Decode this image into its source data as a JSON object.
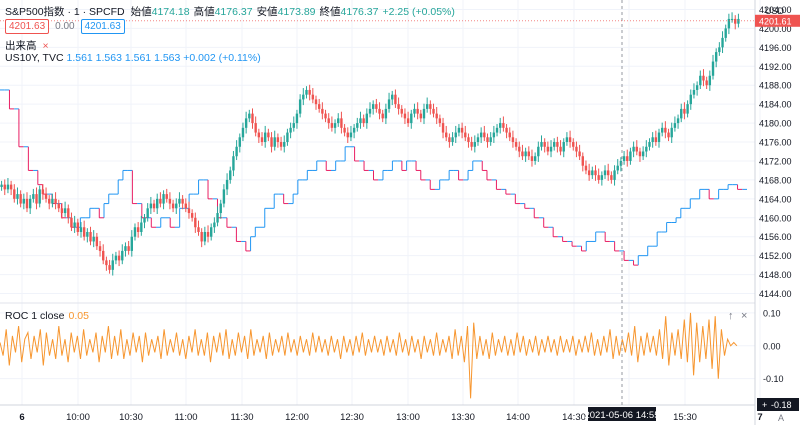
{
  "header": {
    "symbol": "S&P500指数 · 1 · SPCFD",
    "ohlc": [
      {
        "label": "始値",
        "value": "4174.18"
      },
      {
        "label": "高値",
        "value": "4176.37"
      },
      {
        "label": "安値",
        "value": "4173.89"
      },
      {
        "label": "終値",
        "value": "4176.37"
      },
      {
        "label": "",
        "value": "+2.25 (+0.05%)"
      }
    ],
    "bid": "4201.63",
    "spread": "0.00",
    "ask": "4201.63",
    "volume_label": "出来高",
    "us10y_label": "US10Y, TVC",
    "us10y_values": "1.561  1.563  1.561  1.563  +0.002 (+0.11%)",
    "roc_label": "ROC 1 close",
    "roc_value": "0.05",
    "pane_up": "↑",
    "pane_close": "×",
    "axis_button_a": "A"
  },
  "colors": {
    "up": "#26a69a",
    "down": "#ef5350",
    "us10y_up": "#2196f3",
    "us10y_down": "#e91e63",
    "roc": "#f7962f",
    "grid": "#f0f3fa",
    "axis_text": "#131722",
    "crosshair": "#9598a1"
  },
  "crosshair": {
    "time_label": "2021-05-06  14:55",
    "roc_value": "-0.18",
    "roc_plus": "+"
  },
  "chart_data": {
    "type": "candlestick",
    "x_ticks": [
      "6",
      "10:00",
      "10:30",
      "11:00",
      "11:30",
      "12:00",
      "12:30",
      "13:00",
      "13:30",
      "14:00",
      "14:30",
      "15:00",
      "15:30",
      "7"
    ],
    "price_axis": {
      "unit": "USD",
      "ylim": [
        4142,
        4206
      ],
      "ticks": [
        "4144.00",
        "4148.00",
        "4152.00",
        "4156.00",
        "4160.00",
        "4164.00",
        "4168.00",
        "4172.00",
        "4176.00",
        "4180.00",
        "4184.00",
        "4188.00",
        "4192.00",
        "4196.00",
        "4200.00",
        "4204.00"
      ],
      "last_price": "4201.61"
    },
    "roc_axis": {
      "ylim": [
        -0.18,
        0.13
      ],
      "ticks": [
        "0.10",
        "0.00",
        "-0.10"
      ]
    },
    "spx_close": [
      4167,
      4166,
      4167,
      4166,
      4164,
      4165,
      4163,
      4164,
      4162,
      4164,
      4165,
      4163,
      4166,
      4165,
      4164,
      4163,
      4164,
      4163,
      4162,
      4161,
      4162,
      4160,
      4158,
      4159,
      4157,
      4158,
      4156,
      4157,
      4155,
      4156,
      4154,
      4153,
      4151,
      4150,
      4149,
      4151,
      4152,
      4151,
      4153,
      4154,
      4153,
      4156,
      4158,
      4157,
      4159,
      4160,
      4162,
      4163,
      4162,
      4164,
      4163,
      4165,
      4164,
      4163,
      4162,
      4163,
      4164,
      4163,
      4162,
      4161,
      4160,
      4158,
      4157,
      4155,
      4157,
      4156,
      4158,
      4159,
      4161,
      4163,
      4166,
      4168,
      4170,
      4173,
      4175,
      4177,
      4179,
      4181,
      4182,
      4180,
      4178,
      4177,
      4176,
      4178,
      4177,
      4175,
      4177,
      4176,
      4175,
      4176,
      4178,
      4179,
      4180,
      4182,
      4185,
      4186,
      4187,
      4186,
      4185,
      4184,
      4183,
      4182,
      4181,
      4180,
      4179,
      4180,
      4181,
      4179,
      4178,
      4177,
      4178,
      4179,
      4180,
      4181,
      4180,
      4182,
      4183,
      4184,
      4183,
      4182,
      4181,
      4183,
      4185,
      4186,
      4184,
      4183,
      4182,
      4181,
      4180,
      4182,
      4183,
      4182,
      4181,
      4183,
      4184,
      4183,
      4182,
      4181,
      4180,
      4178,
      4177,
      4176,
      4177,
      4178,
      4179,
      4178,
      4177,
      4176,
      4175,
      4176,
      4177,
      4178,
      4177,
      4176,
      4177,
      4178,
      4179,
      4180,
      4179,
      4178,
      4177,
      4176,
      4175,
      4174,
      4173,
      4174,
      4173,
      4172,
      4173,
      4175,
      4176,
      4175,
      4174,
      4175,
      4176,
      4175,
      4174,
      4176,
      4177,
      4176,
      4175,
      4174,
      4173,
      4171,
      4170,
      4169,
      4170,
      4169,
      4168,
      4169,
      4170,
      4169,
      4168,
      4170,
      4171,
      4172,
      4173,
      4172,
      4174,
      4175,
      4174,
      4173,
      4174,
      4175,
      4176,
      4177,
      4176,
      4178,
      4179,
      4178,
      4177,
      4179,
      4180,
      4181,
      4183,
      4182,
      4184,
      4186,
      4187,
      4188,
      4190,
      4189,
      4188,
      4190,
      4193,
      4195,
      4196,
      4198,
      4200,
      4202,
      4202,
      4201,
      4202
    ],
    "us10y_steps": [
      4187,
      4187,
      4183,
      4183,
      4175,
      4175,
      4170,
      4170,
      4167,
      4165,
      4165,
      4163,
      4163,
      4160,
      4160,
      4158,
      4158,
      4160,
      4160,
      4162,
      4162,
      4160,
      4163,
      4165,
      4165,
      4168,
      4170,
      4170,
      4163,
      4163,
      4160,
      4160,
      4158,
      4158,
      4160,
      4160,
      4158,
      4158,
      4162,
      4162,
      4165,
      4165,
      4168,
      4168,
      4164,
      4164,
      4160,
      4160,
      4158,
      4158,
      4155,
      4155,
      4153,
      4156,
      4158,
      4158,
      4162,
      4162,
      4165,
      4165,
      4163,
      4163,
      4165,
      4168,
      4168,
      4170,
      4170,
      4172,
      4172,
      4170,
      4170,
      4172,
      4172,
      4175,
      4175,
      4172,
      4172,
      4170,
      4170,
      4168,
      4168,
      4170,
      4170,
      4172,
      4172,
      4170,
      4172,
      4172,
      4170,
      4168,
      4168,
      4166,
      4166,
      4168,
      4168,
      4170,
      4170,
      4168,
      4168,
      4170,
      4172,
      4172,
      4170,
      4168,
      4168,
      4166,
      4166,
      4165,
      4165,
      4163,
      4163,
      4162,
      4162,
      4160,
      4160,
      4158,
      4158,
      4156,
      4156,
      4155,
      4155,
      4154,
      4154,
      4153,
      4155,
      4155,
      4157,
      4157,
      4155,
      4155,
      4153,
      4153,
      4151,
      4151,
      4150,
      4152,
      4152,
      4154,
      4154,
      4157,
      4157,
      4159,
      4159,
      4160,
      4162,
      4162,
      4164,
      4164,
      4166,
      4166,
      4164,
      4164,
      4166,
      4166,
      4167,
      4167,
      4166,
      4166
    ],
    "roc_values": [
      0.01,
      -0.03,
      0.05,
      -0.06,
      0.03,
      -0.02,
      0.06,
      -0.05,
      0.02,
      0.04,
      -0.04,
      0.03,
      -0.02,
      0.05,
      -0.06,
      0.04,
      -0.03,
      0.02,
      -0.04,
      0.06,
      -0.03,
      0.02,
      -0.05,
      0.04,
      -0.02,
      0.03,
      -0.04,
      0.05,
      -0.03,
      0.02,
      -0.02,
      0.04,
      -0.05,
      0.03,
      -0.02,
      0.06,
      -0.04,
      0.03,
      -0.03,
      0.05,
      -0.04,
      0.02,
      -0.03,
      0.04,
      -0.02,
      0.03,
      -0.05,
      0.04,
      -0.03,
      0.02,
      -0.02,
      0.03,
      -0.04,
      0.05,
      -0.03,
      0.02,
      -0.02,
      0.04,
      -0.03,
      0.02,
      -0.04,
      0.03,
      -0.02,
      0.05,
      -0.03,
      0.02,
      -0.03,
      0.04,
      -0.05,
      0.03,
      -0.02,
      0.04,
      -0.03,
      0.05,
      -0.04,
      0.02,
      -0.03,
      0.04,
      -0.02,
      0.03,
      -0.04,
      0.05,
      -0.03,
      0.02,
      -0.02,
      0.03,
      -0.04,
      0.04,
      -0.03,
      0.02,
      -0.02,
      0.03,
      -0.03,
      0.04,
      -0.02,
      0.02,
      -0.03,
      0.03,
      -0.02,
      0.02,
      -0.03,
      0.04,
      -0.02,
      0.03,
      -0.02,
      0.02,
      -0.03,
      0.03,
      -0.02,
      0.02,
      -0.04,
      0.03,
      -0.02,
      0.02,
      -0.03,
      0.03,
      -0.02,
      0.04,
      -0.03,
      0.02,
      -0.02,
      0.03,
      -0.02,
      0.02,
      -0.03,
      0.03,
      -0.02,
      0.02,
      -0.03,
      0.04,
      -0.02,
      0.02,
      -0.03,
      0.03,
      -0.02,
      0.02,
      -0.04,
      0.03,
      -0.02,
      0.02,
      -0.03,
      0.04,
      -0.03,
      0.02,
      -0.02,
      0.03,
      -0.04,
      0.05,
      -0.03,
      0.03,
      -0.05,
      0.06,
      -0.16,
      0.07,
      -0.04,
      0.03,
      -0.03,
      0.02,
      -0.04,
      0.04,
      -0.03,
      0.02,
      -0.02,
      0.03,
      -0.03,
      0.02,
      -0.03,
      0.04,
      -0.02,
      0.03,
      -0.03,
      0.02,
      -0.02,
      0.03,
      -0.03,
      0.02,
      -0.02,
      0.03,
      -0.02,
      0.02,
      -0.03,
      0.03,
      -0.02,
      0.02,
      -0.02,
      0.03,
      -0.03,
      0.02,
      -0.02,
      0.03,
      -0.02,
      0.04,
      -0.03,
      0.02,
      -0.03,
      0.03,
      -0.02,
      0.05,
      -0.04,
      0.03,
      -0.03,
      0.02,
      -0.02,
      0.04,
      -0.03,
      0.06,
      -0.05,
      0.03,
      -0.03,
      0.04,
      -0.02,
      0.03,
      -0.03,
      0.05,
      -0.04,
      0.09,
      -0.06,
      0.04,
      -0.03,
      0.05,
      -0.04,
      0.08,
      -0.05,
      0.1,
      -0.09,
      0.07,
      -0.05,
      0.06,
      -0.04,
      0.08,
      -0.07,
      0.09,
      -0.1,
      0.05,
      -0.03,
      0.02,
      0.0,
      0.01,
      0.0
    ]
  }
}
